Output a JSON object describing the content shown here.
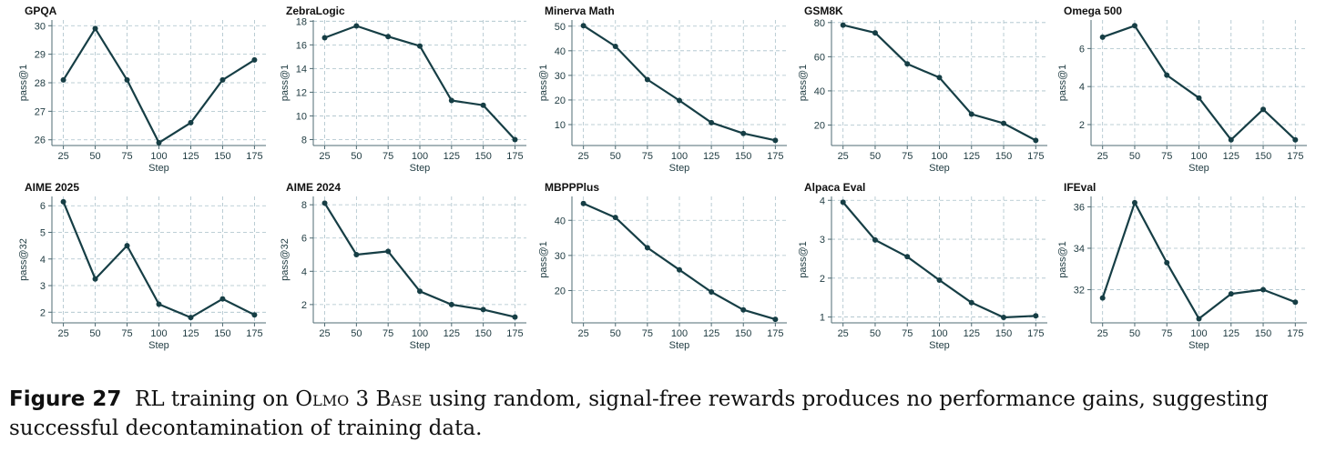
{
  "figure": {
    "line_color": "#163e45",
    "axis_color": "#4f6b73",
    "grid_color": "#a9c0c9",
    "caption": {
      "label": "Figure 27",
      "text_a": "RL training on",
      "model": "Olmo 3 Base",
      "text_b": "using random, signal-free rewards produces no performance gains, suggesting successful decontamination of training data."
    }
  },
  "chart_data": [
    {
      "type": "line",
      "title": "GPQA",
      "xlabel": "Step",
      "ylabel": "pass@1",
      "x": [
        25,
        50,
        75,
        100,
        125,
        150,
        175
      ],
      "values": [
        28.1,
        29.9,
        28.1,
        25.9,
        26.6,
        28.1,
        28.8
      ],
      "ylim": [
        25.8,
        30.2
      ],
      "yticks": [
        26,
        27,
        28,
        29,
        30
      ],
      "xticks": [
        25,
        50,
        75,
        100,
        125,
        150,
        175
      ]
    },
    {
      "type": "line",
      "title": "ZebraLogic",
      "xlabel": "Step",
      "ylabel": "pass@1",
      "x": [
        25,
        50,
        75,
        100,
        125,
        150,
        175
      ],
      "values": [
        16.6,
        17.6,
        16.7,
        15.9,
        11.3,
        10.9,
        8.0
      ],
      "ylim": [
        7.5,
        18.1
      ],
      "yticks": [
        8,
        10,
        12,
        14,
        16,
        18
      ],
      "xticks": [
        25,
        50,
        75,
        100,
        125,
        150,
        175
      ]
    },
    {
      "type": "line",
      "title": "Minerva Math",
      "xlabel": "Step",
      "ylabel": "pass@1",
      "x": [
        25,
        50,
        75,
        100,
        125,
        150,
        175
      ],
      "values": [
        50.2,
        41.8,
        28.3,
        19.8,
        10.8,
        6.4,
        3.6
      ],
      "ylim": [
        1.5,
        52.5
      ],
      "yticks": [
        10,
        20,
        30,
        40,
        50
      ],
      "xticks": [
        25,
        50,
        75,
        100,
        125,
        150,
        175
      ]
    },
    {
      "type": "line",
      "title": "GSM8K",
      "xlabel": "Step",
      "ylabel": "pass@1",
      "x": [
        25,
        50,
        75,
        100,
        125,
        150,
        175
      ],
      "values": [
        78.5,
        74.0,
        55.8,
        47.8,
        26.4,
        21.0,
        11.0
      ],
      "ylim": [
        8.0,
        81.5
      ],
      "yticks": [
        20,
        40,
        60,
        80
      ],
      "xticks": [
        25,
        50,
        75,
        100,
        125,
        150,
        175
      ]
    },
    {
      "type": "line",
      "title": "Omega 500",
      "xlabel": "Step",
      "ylabel": "pass@1",
      "x": [
        25,
        50,
        75,
        100,
        125,
        150,
        175
      ],
      "values": [
        6.6,
        7.2,
        4.6,
        3.4,
        1.2,
        2.8,
        1.2
      ],
      "ylim": [
        0.9,
        7.5
      ],
      "yticks": [
        2,
        4,
        6
      ],
      "xticks": [
        25,
        50,
        75,
        100,
        125,
        150,
        175
      ]
    },
    {
      "type": "line",
      "title": "AIME 2025",
      "xlabel": "Step",
      "ylabel": "pass@32",
      "x": [
        25,
        50,
        75,
        100,
        125,
        150,
        175
      ],
      "values": [
        6.15,
        3.25,
        4.5,
        2.3,
        1.8,
        2.5,
        1.9
      ],
      "ylim": [
        1.6,
        6.35
      ],
      "yticks": [
        2,
        3,
        4,
        5,
        6
      ],
      "xticks": [
        25,
        50,
        75,
        100,
        125,
        150,
        175
      ]
    },
    {
      "type": "line",
      "title": "AIME 2024",
      "xlabel": "Step",
      "ylabel": "pass@32",
      "x": [
        25,
        50,
        75,
        100,
        125,
        150,
        175
      ],
      "values": [
        8.1,
        5.0,
        5.2,
        2.8,
        2.0,
        1.7,
        1.25
      ],
      "ylim": [
        0.9,
        8.5
      ],
      "yticks": [
        2,
        4,
        6,
        8
      ],
      "xticks": [
        25,
        50,
        75,
        100,
        125,
        150,
        175
      ]
    },
    {
      "type": "line",
      "title": "MBPPPlus",
      "xlabel": "Step",
      "ylabel": "pass@1",
      "x": [
        25,
        50,
        75,
        100,
        125,
        150,
        175
      ],
      "values": [
        44.8,
        40.8,
        32.2,
        25.9,
        19.6,
        14.5,
        11.8
      ],
      "ylim": [
        10.8,
        46.8
      ],
      "yticks": [
        20,
        30,
        40
      ],
      "xticks": [
        25,
        50,
        75,
        100,
        125,
        150,
        175
      ]
    },
    {
      "type": "line",
      "title": "Alpaca Eval",
      "xlabel": "Step",
      "ylabel": "pass@1",
      "x": [
        25,
        50,
        75,
        100,
        125,
        150,
        175
      ],
      "values": [
        3.95,
        2.98,
        2.55,
        1.95,
        1.37,
        0.99,
        1.03
      ],
      "ylim": [
        0.85,
        4.1
      ],
      "yticks": [
        1,
        2,
        3,
        4
      ],
      "xticks": [
        25,
        50,
        75,
        100,
        125,
        150,
        175
      ]
    },
    {
      "type": "line",
      "title": "IFEval",
      "xlabel": "Step",
      "ylabel": "pass@1",
      "x": [
        25,
        50,
        75,
        100,
        125,
        150,
        175
      ],
      "values": [
        31.6,
        36.2,
        33.3,
        30.6,
        31.8,
        32.0,
        31.4
      ],
      "ylim": [
        30.4,
        36.5
      ],
      "yticks": [
        32,
        34,
        36
      ],
      "xticks": [
        25,
        50,
        75,
        100,
        125,
        150,
        175
      ]
    }
  ]
}
